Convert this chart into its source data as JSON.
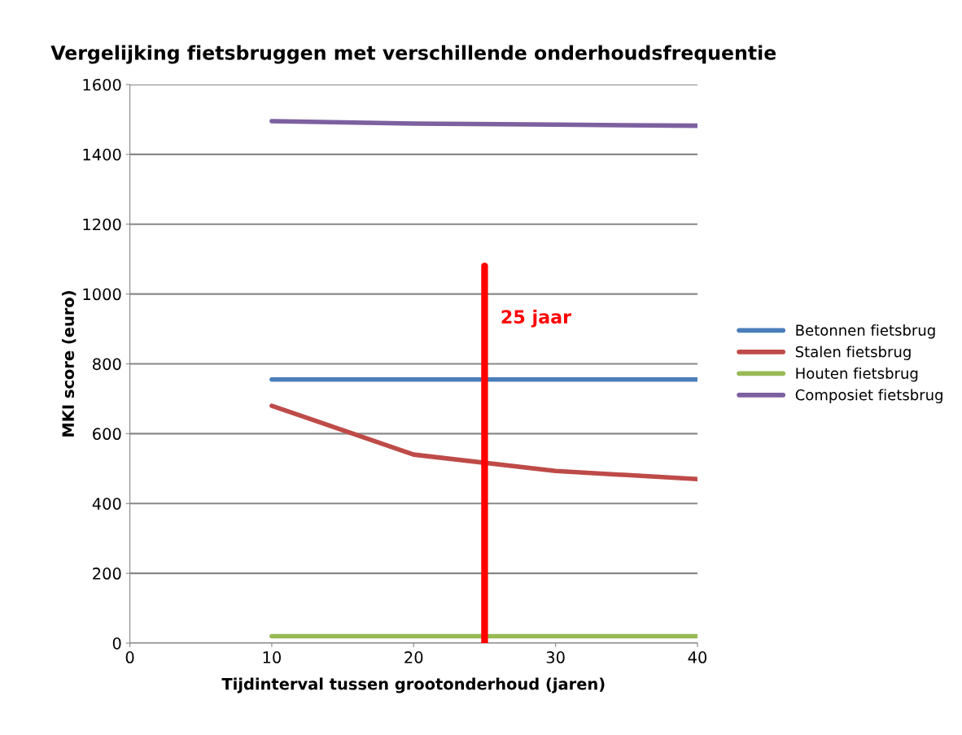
{
  "chart_data": {
    "type": "line",
    "title": "Vergelijking fietsbruggen met verschillende onderhoudsfrequentie",
    "xlabel": "Tijdinterval tussen grootonderhoud (jaren)",
    "ylabel": "MKI score (euro)",
    "x": [
      10,
      20,
      30,
      40
    ],
    "series": [
      {
        "name": "Betonnen fietsbrug",
        "color": "#4a7ebb",
        "values": [
          755,
          755,
          755,
          755
        ]
      },
      {
        "name": "Stalen fietsbrug",
        "color": "#be4b48",
        "values": [
          680,
          540,
          493,
          470
        ]
      },
      {
        "name": "Houten fietsbrug",
        "color": "#98b954",
        "values": [
          20,
          20,
          20,
          20
        ]
      },
      {
        "name": "Composiet fietsbrug",
        "color": "#7d60a0",
        "values": [
          1495,
          1488,
          1485,
          1482
        ]
      },
      {
        "color": "#ff0000",
        "x": [
          25,
          25
        ],
        "values": [
          0,
          1080
        ]
      }
    ],
    "annotations": [
      {
        "text": "25 jaar",
        "x": 25,
        "y": 930
      }
    ],
    "xlim": [
      0,
      40
    ],
    "xticks": [
      0,
      10,
      20,
      30,
      40
    ],
    "ylim": [
      0,
      1600
    ],
    "yticks": [
      0,
      200,
      400,
      600,
      800,
      1000,
      1200,
      1400,
      1600
    ],
    "grid": "y",
    "legend": "right",
    "marker": "none",
    "line_style": "solid"
  }
}
